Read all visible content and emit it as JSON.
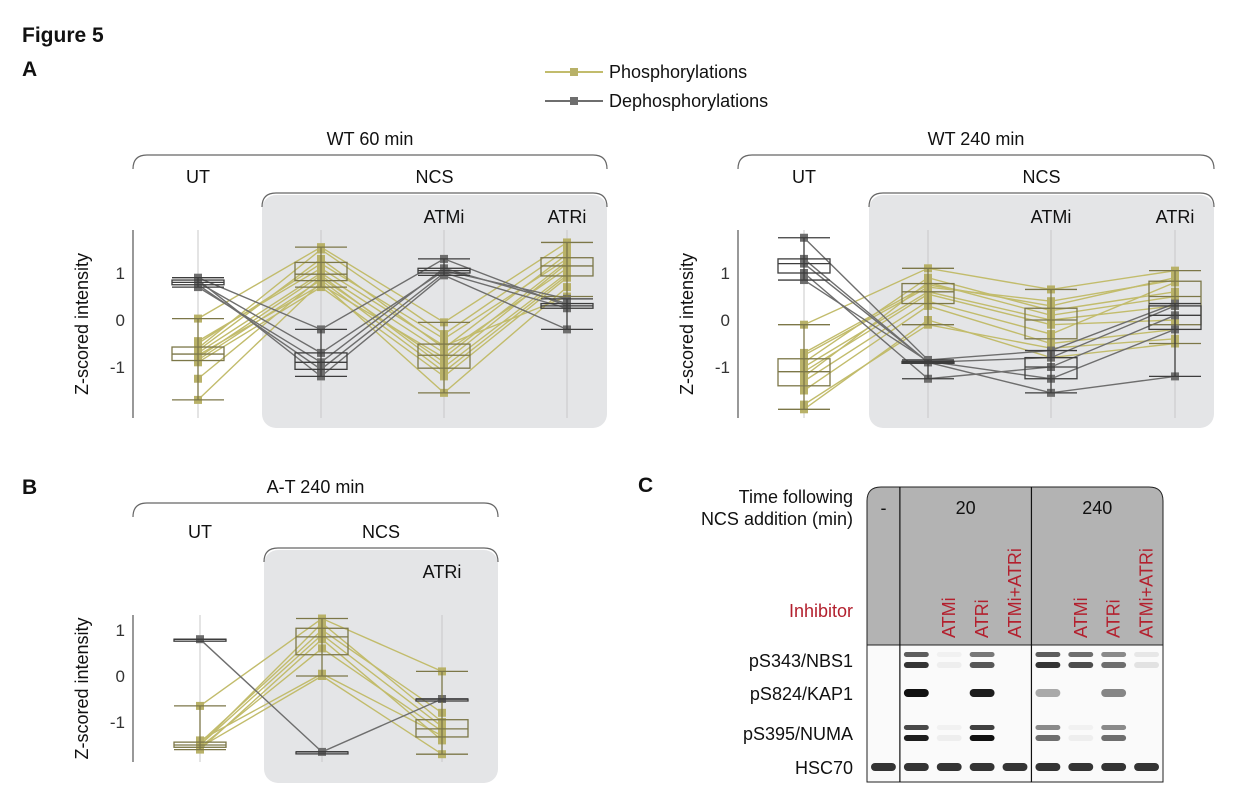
{
  "figure_title": "Figure 5",
  "panel_labels": {
    "a": "A",
    "b": "B",
    "c": "C"
  },
  "legend": {
    "phospho": "Phosphorylations",
    "dephospho": "Dephosphorylations"
  },
  "colors": {
    "phospho_line": "#c2bc6c",
    "phospho_marker": "#b8b168",
    "phospho_box": "#7c7748",
    "dephospho_line": "#6e6e6e",
    "dephospho_box": "#3d3d3d",
    "shade": "#e4e5e7",
    "blot_header": "#b3b3b3",
    "inhibitor_text": "#b3202e"
  },
  "chart_data": [
    {
      "type": "box-line",
      "title": "WT 60 min",
      "ylabel": "Z-scored intensity",
      "yticks": [
        -1,
        0,
        1
      ],
      "ylim": [
        -2.2,
        1.9
      ],
      "group_labels": {
        "untreated": "UT",
        "treated": "NCS"
      },
      "categories": [
        "UT",
        "NCS",
        "ATMi",
        "ATRi"
      ],
      "category_labels": [
        "",
        "",
        "ATMi",
        "ATRi"
      ],
      "series": [
        {
          "name": "Phosphorylations",
          "lines": [
            [
              -0.7,
              1.0,
              -0.7,
              1.1
            ],
            [
              -1.7,
              0.8,
              -1.55,
              0.7
            ],
            [
              0.03,
              1.55,
              -0.05,
              1.65
            ],
            [
              -0.5,
              1.2,
              -0.4,
              1.3
            ],
            [
              -0.9,
              0.7,
              -1.2,
              0.9
            ],
            [
              -1.25,
              0.9,
              -0.9,
              1.2
            ],
            [
              -0.6,
              1.5,
              -0.3,
              1.5
            ],
            [
              -0.8,
              0.95,
              -1.0,
              1.0
            ],
            [
              -0.45,
              1.1,
              -0.55,
              0.5
            ],
            [
              -0.75,
              0.75,
              -0.8,
              1.25
            ],
            [
              -0.65,
              1.3,
              -0.6,
              1.4
            ],
            [
              -0.85,
              0.85,
              -1.1,
              0.95
            ]
          ]
        },
        {
          "name": "Dephosphorylations",
          "lines": [
            [
              0.9,
              -0.2,
              1.3,
              0.3
            ],
            [
              0.8,
              -0.7,
              1.05,
              0.45
            ],
            [
              0.75,
              -1.05,
              1.0,
              0.25
            ],
            [
              0.85,
              -1.2,
              0.95,
              -0.2
            ],
            [
              0.7,
              -0.9,
              1.1,
              0.35
            ]
          ]
        }
      ]
    },
    {
      "type": "box-line",
      "title": "WT 240 min",
      "ylabel": "Z-scored intensity",
      "yticks": [
        -1,
        0,
        1
      ],
      "ylim": [
        -2.2,
        1.9
      ],
      "group_labels": {
        "untreated": "UT",
        "treated": "NCS"
      },
      "categories": [
        "UT",
        "NCS",
        "ATMi",
        "ATRi"
      ],
      "category_labels": [
        "",
        "",
        "ATMi",
        "ATRi"
      ],
      "series": [
        {
          "name": "Phosphorylations",
          "lines": [
            [
              -1.0,
              0.6,
              0.0,
              0.3
            ],
            [
              -1.9,
              0.0,
              -0.8,
              -0.5
            ],
            [
              -0.1,
              1.1,
              0.65,
              1.05
            ],
            [
              -1.3,
              0.4,
              -0.3,
              0.8
            ],
            [
              -0.7,
              0.75,
              0.3,
              0.9
            ],
            [
              -1.5,
              0.3,
              -0.5,
              -0.2
            ],
            [
              -0.9,
              0.9,
              0.2,
              0.6
            ],
            [
              -1.1,
              0.55,
              -0.1,
              0.0
            ],
            [
              -0.75,
              0.7,
              0.4,
              0.85
            ],
            [
              -1.8,
              -0.1,
              -0.6,
              -0.4
            ],
            [
              -1.2,
              0.8,
              0.1,
              0.5
            ]
          ]
        },
        {
          "name": "Dephosphorylations",
          "lines": [
            [
              1.75,
              -0.85,
              -0.65,
              0.35
            ],
            [
              1.3,
              -0.9,
              -1.55,
              -1.2
            ],
            [
              1.0,
              -1.25,
              -1.0,
              0.1
            ],
            [
              0.85,
              -0.88,
              -1.25,
              -0.2
            ],
            [
              1.2,
              -0.9,
              -0.8,
              0.3
            ]
          ]
        }
      ]
    },
    {
      "type": "box-line",
      "title": "A-T 240 min",
      "ylabel": "Z-scored intensity",
      "yticks": [
        -1,
        0,
        1
      ],
      "ylim": [
        -1.9,
        1.4
      ],
      "group_labels": {
        "untreated": "UT",
        "treated": "NCS"
      },
      "categories": [
        "UT",
        "NCS",
        "ATRi"
      ],
      "category_labels": [
        "",
        "",
        "ATRi"
      ],
      "series": [
        {
          "name": "Phosphorylations",
          "lines": [
            [
              -1.5,
              0.9,
              -1.1
            ],
            [
              -0.65,
              1.25,
              0.1
            ],
            [
              -1.55,
              0.0,
              -1.7
            ],
            [
              -1.45,
              1.0,
              -0.8
            ],
            [
              -1.6,
              0.8,
              -1.4
            ],
            [
              -1.5,
              1.15,
              -1.0
            ],
            [
              -1.4,
              0.05,
              -1.3
            ],
            [
              -1.55,
              0.6,
              -1.2
            ]
          ]
        },
        {
          "name": "Dephosphorylations",
          "lines": [
            [
              0.8,
              -1.65,
              -0.5
            ]
          ]
        }
      ]
    }
  ],
  "blot": {
    "time_label_1": "Time following",
    "time_label_2": "NCS addition (min)",
    "inhibitor_label": "Inhibitor",
    "time_groups": [
      "-",
      "20",
      "240"
    ],
    "inhibitors": [
      "",
      "",
      "ATMi",
      "ATRi",
      "ATMi+ATRi",
      "",
      "ATMi",
      "ATRi",
      "ATMi+ATRi"
    ],
    "rows": [
      {
        "label": "pS343/NBS1",
        "doublet": true,
        "intensity": [
          0.02,
          0.85,
          0.05,
          0.7,
          0.02,
          0.85,
          0.75,
          0.6,
          0.1
        ]
      },
      {
        "label": "pS824/KAP1",
        "doublet": false,
        "intensity": [
          0.0,
          1.0,
          0.0,
          0.95,
          0.0,
          0.35,
          0.0,
          0.5,
          0.0
        ]
      },
      {
        "label": "pS395/NUMA",
        "doublet": true,
        "intensity": [
          0.03,
          0.95,
          0.05,
          1.0,
          0.03,
          0.6,
          0.05,
          0.6,
          0.03
        ]
      },
      {
        "label": "HSC70",
        "doublet": false,
        "intensity": [
          0.85,
          0.85,
          0.85,
          0.85,
          0.85,
          0.85,
          0.85,
          0.85,
          0.85
        ]
      }
    ]
  }
}
